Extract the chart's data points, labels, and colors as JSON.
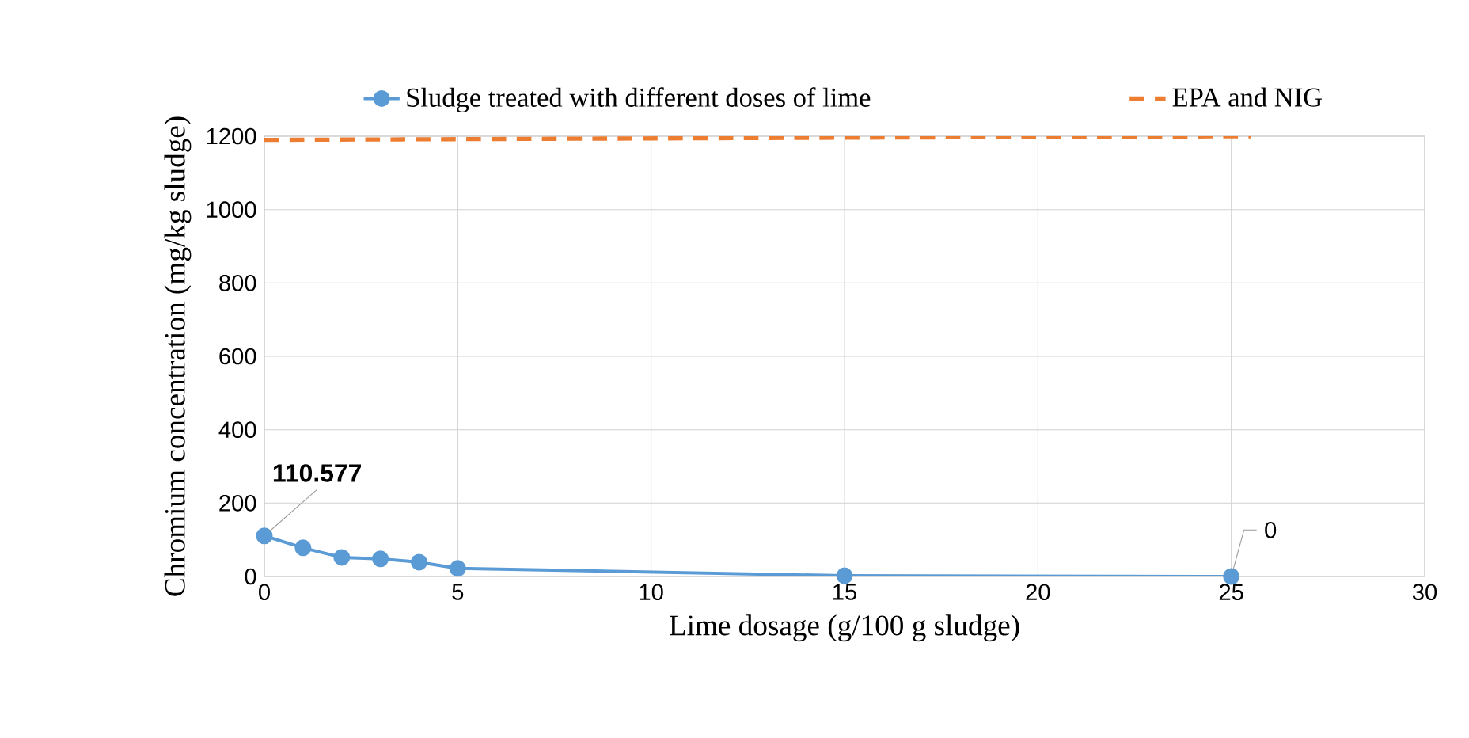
{
  "chart_data": {
    "type": "line",
    "xlabel": "Lime dosage (g/100 g sludge)",
    "ylabel": "Chromium concentration (mg/kg sludge)",
    "xlim": [
      0,
      30
    ],
    "xticks": [
      0,
      5,
      10,
      15,
      20,
      25,
      30
    ],
    "ylim": [
      0,
      1200
    ],
    "yticks": [
      0,
      200,
      400,
      600,
      800,
      1000,
      1200
    ],
    "grid": true,
    "legend": "top",
    "series": [
      {
        "name": "Sludge treated with different doses of lime",
        "color": "#5b9bd5",
        "marker": "circle",
        "line_style": "solid",
        "x": [
          0,
          1,
          2,
          3,
          4,
          5,
          15,
          25
        ],
        "values": [
          110.577,
          78,
          52,
          48,
          39,
          22,
          2,
          0
        ],
        "value_labels": [
          "110.577",
          null,
          null,
          null,
          null,
          null,
          null,
          "0"
        ]
      },
      {
        "name": "EPA and NIG",
        "color": "#ed7d31",
        "marker": "none",
        "line_style": "dashed",
        "x": [
          0,
          25.5
        ],
        "values": [
          1190,
          1200
        ]
      }
    ]
  }
}
